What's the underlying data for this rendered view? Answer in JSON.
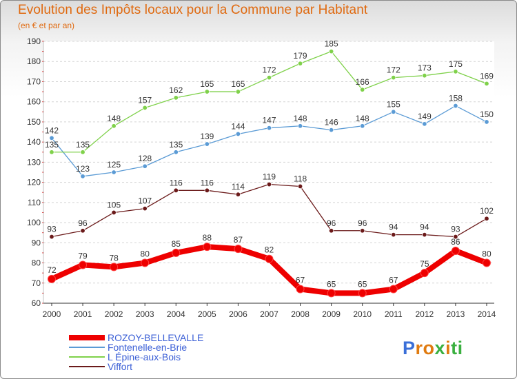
{
  "header": {
    "title": "Evolution des Impôts locaux pour la Commune par Habitant",
    "subtitle": "(en € et par an)"
  },
  "chart_data": {
    "type": "line",
    "title": "Evolution des Impôts locaux pour la Commune par Habitant",
    "subtitle": "(en € et par an)",
    "xlabel": "",
    "ylabel": "",
    "x": [
      "2000",
      "2001",
      "2002",
      "2003",
      "2004",
      "2005",
      "2006",
      "2007",
      "2008",
      "2009",
      "2010",
      "2011",
      "2012",
      "2013",
      "2014"
    ],
    "ylim": [
      60,
      190
    ],
    "yticks": [
      60,
      70,
      80,
      90,
      100,
      110,
      120,
      130,
      140,
      150,
      160,
      170,
      180,
      190
    ],
    "grid": "horizontal dashed",
    "legend_position": "bottom-left",
    "series": [
      {
        "name": "ROZOY-BELLEVALLE",
        "color": "#ee0000",
        "values": [
          72,
          79,
          78,
          80,
          85,
          88,
          87,
          82,
          67,
          65,
          65,
          67,
          75,
          86,
          80
        ]
      },
      {
        "name": "Fontenelle-en-Brie",
        "color": "#5b9bd5",
        "values": [
          142,
          123,
          125,
          128,
          135,
          139,
          144,
          147,
          148,
          146,
          148,
          155,
          149,
          158,
          150
        ]
      },
      {
        "name": "L  Épine-aux-Bois",
        "color": "#7fd14a",
        "values": [
          135,
          135,
          148,
          157,
          162,
          165,
          165,
          172,
          179,
          185,
          166,
          172,
          173,
          175,
          169
        ]
      },
      {
        "name": "Viffort",
        "color": "#6b1a1a",
        "values": [
          93,
          96,
          105,
          107,
          116,
          116,
          114,
          119,
          118,
          96,
          96,
          94,
          94,
          93,
          102
        ]
      }
    ]
  },
  "logo": {
    "letters": [
      {
        "ch": "P",
        "color": "#3a6fd8"
      },
      {
        "ch": "r",
        "color": "#e07b10"
      },
      {
        "ch": "o",
        "color": "#e07b10"
      },
      {
        "ch": "x",
        "color": "#3ab040"
      },
      {
        "ch": "i",
        "color": "#e07b10"
      },
      {
        "ch": "t",
        "color": "#3ab040"
      },
      {
        "ch": "i",
        "color": "#3ab040"
      }
    ]
  }
}
